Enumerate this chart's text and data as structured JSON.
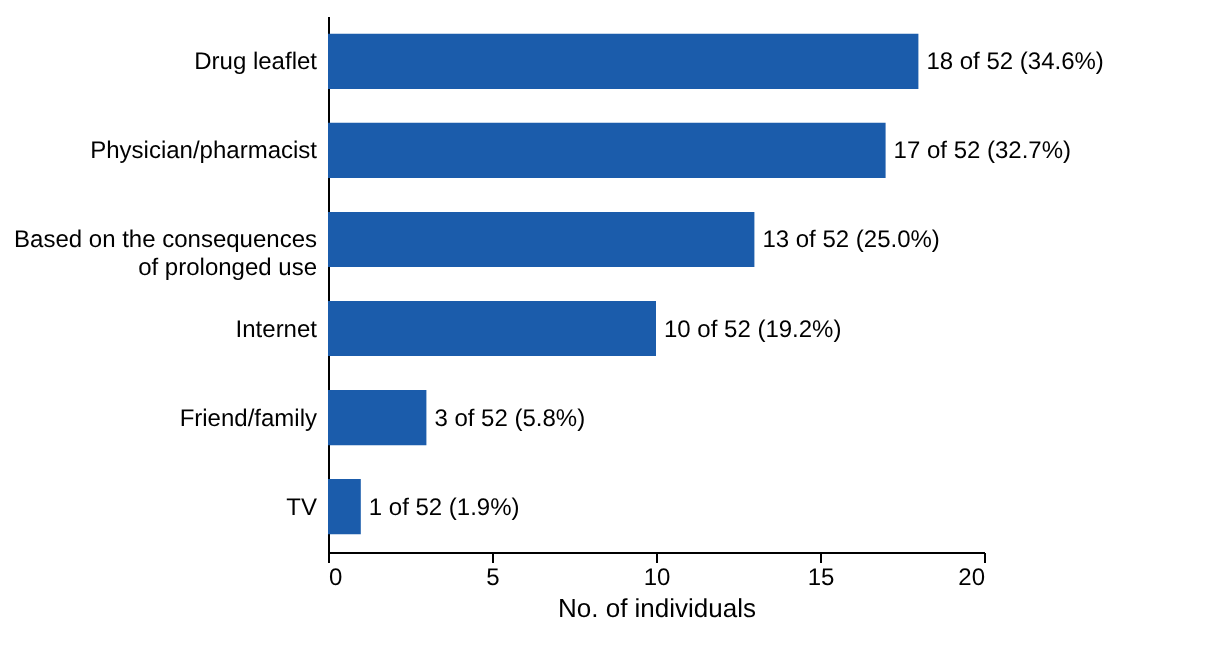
{
  "chart_data": {
    "type": "bar",
    "orientation": "horizontal",
    "categories": [
      "Drug leaflet",
      "Physician/pharmacist",
      "Based on the consequences of prolonged use",
      "Internet",
      "Friend/family",
      "TV"
    ],
    "values": [
      18,
      17,
      13,
      10,
      3,
      1
    ],
    "value_labels": [
      "18 of 52 (34.6%)",
      "17 of 52 (32.7%)",
      "13 of 52 (25.0%)",
      "10 of 52 (19.2%)",
      "3 of 52 (5.8%)",
      "1 of 52 (1.9%)"
    ],
    "color": "#1b5cab",
    "xlabel": "No. of individuals",
    "xlim": [
      0,
      20
    ],
    "xticks": [
      0,
      5,
      10,
      15,
      20
    ],
    "grid": false
  }
}
